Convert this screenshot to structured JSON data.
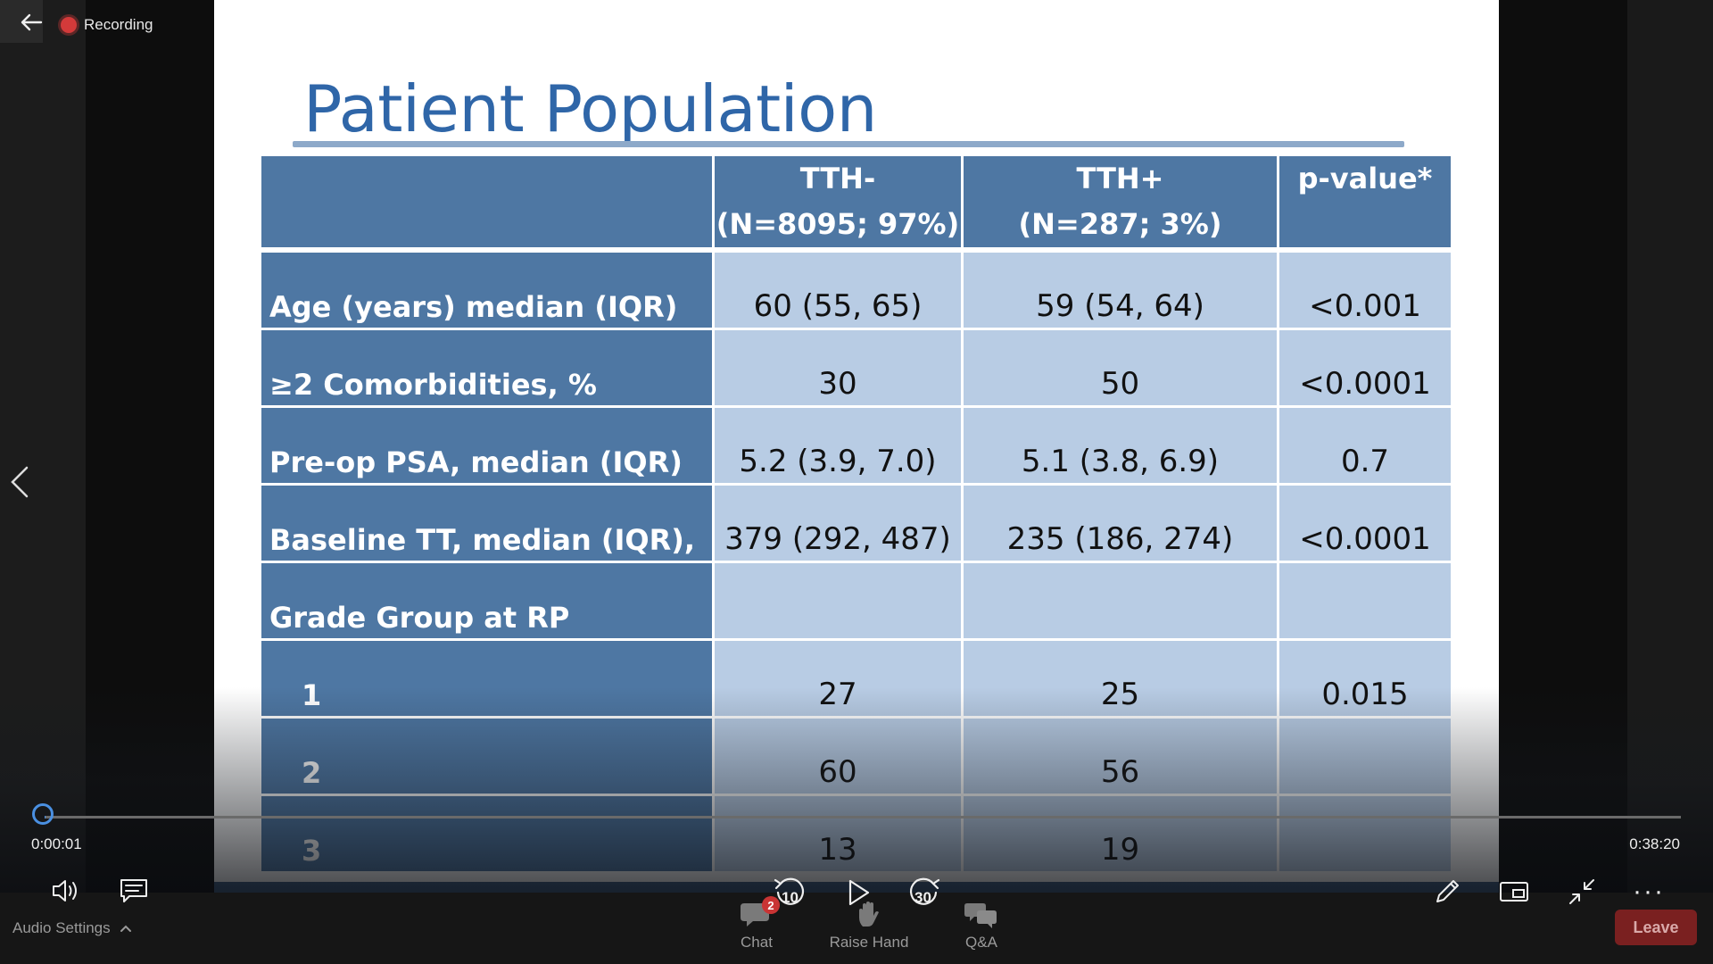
{
  "header": {
    "recording_label": "Recording"
  },
  "slide": {
    "title": "Patient Population",
    "table": {
      "columns": [
        "",
        "TTH-\n(N=8095; 97%)",
        "TTH+\n(N=287; 3%)",
        "p-value*"
      ],
      "column_lines": [
        [
          ""
        ],
        [
          "TTH-",
          "(N=8095; 97%)"
        ],
        [
          "TTH+",
          "(N=287; 3%)"
        ],
        [
          "p-value*"
        ]
      ],
      "rows": [
        {
          "label": "Age (years) median (IQR)",
          "tth_minus": "60 (55, 65)",
          "tth_plus": "59 (54, 64)",
          "p_value": "<0.001"
        },
        {
          "label": "≥2 Comorbidities, %",
          "tth_minus": "30",
          "tth_plus": "50",
          "p_value": "<0.0001"
        },
        {
          "label": "Pre-op PSA, median (IQR)",
          "tth_minus": "5.2 (3.9, 7.0)",
          "tth_plus": "5.1 (3.8, 6.9)",
          "p_value": "0.7"
        },
        {
          "label": "Baseline TT, median (IQR),",
          "tth_minus": "379 (292, 487)",
          "tth_plus": "235 (186, 274)",
          "p_value": "<0.0001"
        },
        {
          "label": "Grade Group at RP",
          "tth_minus": "",
          "tth_plus": "",
          "p_value": ""
        },
        {
          "label": "1",
          "tth_minus": "27",
          "tth_plus": "25",
          "p_value": "0.015"
        },
        {
          "label": "2",
          "tth_minus": "60",
          "tth_plus": "56",
          "p_value": ""
        },
        {
          "label": "3",
          "tth_minus": "13",
          "tth_plus": "19",
          "p_value": ""
        }
      ]
    }
  },
  "player": {
    "current_time": "0:00:01",
    "total_time": "0:38:20",
    "progress_fraction": 0.0004,
    "rewind_seconds": "10",
    "forward_seconds": "30",
    "audio_settings_label": "Audio Settings",
    "more_label": "···"
  },
  "toolbar": {
    "chat_label": "Chat",
    "chat_badge": "2",
    "raise_hand_label": "Raise Hand",
    "qa_label": "Q&A",
    "leave_label": "Leave"
  },
  "colors": {
    "title_blue": "#2f66a8",
    "table_header_blue": "#4e77a3",
    "table_cell_light": "#b8cce4",
    "progress_blue": "#4a90e2",
    "leave_red": "#7a2020"
  }
}
